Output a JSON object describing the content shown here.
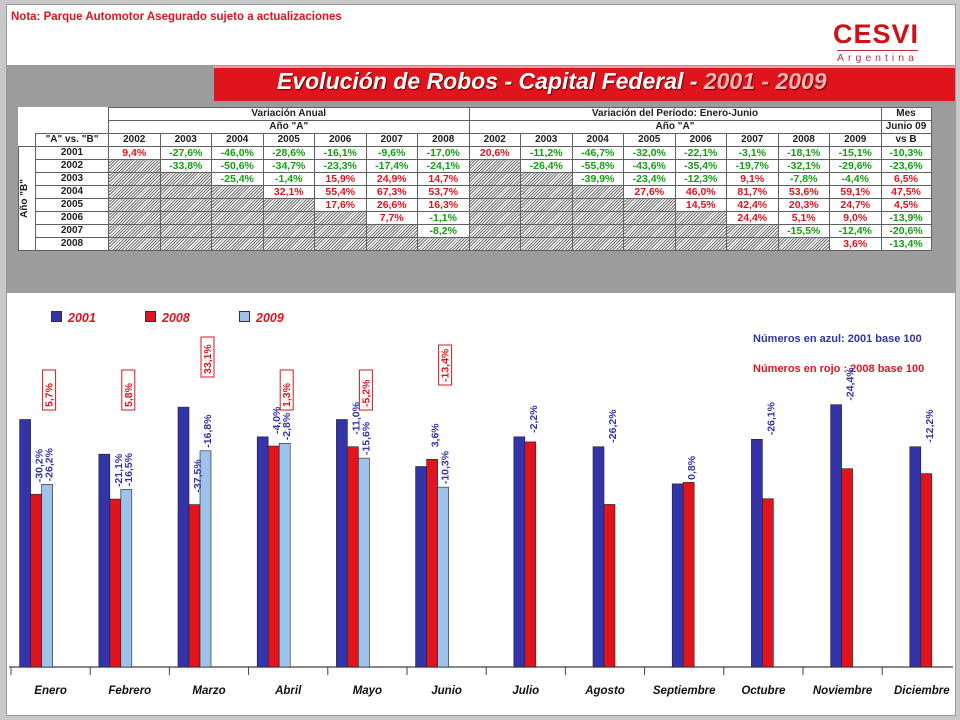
{
  "note": "Nota: Parque Automotor Asegurado sujeto a actualizaciones",
  "logo": {
    "name": "CESVI",
    "sub": "Argentina"
  },
  "title": {
    "main": "Evolución de Robos - Capital Federal - ",
    "years": "2001 - 2009"
  },
  "colors": {
    "blue": "#3333aa",
    "red": "#e0141c",
    "lightblue": "#9dc3ea",
    "green": "#12a012"
  },
  "table": {
    "corner": "\"A\" vs. \"B\"",
    "group1": "Variación Anual",
    "group2": "Variación del Período: Enero-Junio",
    "group3_top": "Mes",
    "group3_mid": "Junio 09",
    "group3_bot": "vs B",
    "sub_a": "Año \"A\"",
    "side_label": "Año \"B\"",
    "anual_cols": [
      "2002",
      "2003",
      "2004",
      "2005",
      "2006",
      "2007",
      "2008"
    ],
    "periodo_cols": [
      "2002",
      "2003",
      "2004",
      "2005",
      "2006",
      "2007",
      "2008",
      "2009"
    ],
    "rows": [
      {
        "year": "2001",
        "anual": [
          "9,4%",
          "-27,6%",
          "-46,0%",
          "-28,6%",
          "-16,1%",
          "-9,6%",
          "-17,0%"
        ],
        "periodo": [
          "20,6%",
          "-11,2%",
          "-46,7%",
          "-32,0%",
          "-22,1%",
          "-3,1%",
          "-18,1%",
          "-15,1%"
        ],
        "mes": "-10,3%"
      },
      {
        "year": "2002",
        "anual": [
          "",
          "-33,8%",
          "-50,6%",
          "-34,7%",
          "-23,3%",
          "-17,4%",
          "-24,1%"
        ],
        "periodo": [
          "",
          "-26,4%",
          "-55,8%",
          "-43,6%",
          "-35,4%",
          "-19,7%",
          "-32,1%",
          "-29,6%"
        ],
        "mes": "-23,6%"
      },
      {
        "year": "2003",
        "anual": [
          "",
          "",
          "-25,4%",
          "-1,4%",
          "15,9%",
          "24,9%",
          "14,7%"
        ],
        "periodo": [
          "",
          "",
          "-39,9%",
          "-23,4%",
          "-12,3%",
          "9,1%",
          "-7,8%",
          "-4,4%"
        ],
        "mes": "6,5%"
      },
      {
        "year": "2004",
        "anual": [
          "",
          "",
          "",
          "32,1%",
          "55,4%",
          "67,3%",
          "53,7%"
        ],
        "periodo": [
          "",
          "",
          "",
          "27,6%",
          "46,0%",
          "81,7%",
          "53,6%",
          "59,1%"
        ],
        "mes": "47,5%"
      },
      {
        "year": "2005",
        "anual": [
          "",
          "",
          "",
          "",
          "17,6%",
          "26,6%",
          "16,3%"
        ],
        "periodo": [
          "",
          "",
          "",
          "",
          "14,5%",
          "42,4%",
          "20,3%",
          "24,7%"
        ],
        "mes": "4,5%"
      },
      {
        "year": "2006",
        "anual": [
          "",
          "",
          "",
          "",
          "",
          "7,7%",
          "-1,1%"
        ],
        "periodo": [
          "",
          "",
          "",
          "",
          "",
          "24,4%",
          "5,1%",
          "9,0%"
        ],
        "mes": "-13,9%"
      },
      {
        "year": "2007",
        "anual": [
          "",
          "",
          "",
          "",
          "",
          "",
          "-8,2%"
        ],
        "periodo": [
          "",
          "",
          "",
          "",
          "",
          "",
          "-15,5%",
          "-12,4%"
        ],
        "mes": "-20,6%"
      },
      {
        "year": "2008",
        "anual": [
          "",
          "",
          "",
          "",
          "",
          "",
          ""
        ],
        "periodo": [
          "",
          "",
          "",
          "",
          "",
          "",
          "",
          "3,6%"
        ],
        "mes": "-13,4%"
      }
    ]
  },
  "chart_data": {
    "type": "bar",
    "categories": [
      "Enero",
      "Febrero",
      "Marzo",
      "Abril",
      "Mayo",
      "Junio",
      "Julio",
      "Agosto",
      "Septiembre",
      "Octubre",
      "Noviembre",
      "Diciembre"
    ],
    "series": [
      {
        "name": "2001",
        "values": [
          100,
          100,
          100,
          100,
          100,
          100,
          100,
          100,
          100,
          100,
          100,
          100
        ]
      },
      {
        "name": "2008",
        "values": [
          69.8,
          78.9,
          62.5,
          96.0,
          89.0,
          103.6,
          97.8,
          73.8,
          100.8,
          73.9,
          75.6,
          87.8
        ]
      },
      {
        "name": "2009",
        "values": [
          73.8,
          83.5,
          83.2,
          97.2,
          84.4,
          89.7,
          null,
          null,
          null,
          null,
          null,
          null
        ]
      }
    ],
    "blue_labels": [
      "-30,2%",
      "-21,1%",
      "-37,5%",
      "-4,0%",
      "-11,0%",
      "3,6%",
      "-2,2%",
      "-26,2%",
      "0,8%",
      "-26,1%",
      "-24,4%",
      "-12,2%"
    ],
    "lightblue_labels": [
      "-26,2%",
      "-16,5%",
      "-16,8%",
      "-2,8%",
      "-15,6%",
      "-10,3%",
      "",
      "",
      "",
      "",
      "",
      ""
    ],
    "red_box_labels": [
      "5,7%",
      "5,8%",
      "33,1%",
      "1,3%",
      "-5,2%",
      "-13,4%",
      "",
      "",
      "",
      "",
      "",
      ""
    ],
    "bar_heights_note_blue": "Números en azul: 2001 base 100",
    "bar_heights_note_red": "Números en rojo : 2008 base 100",
    "blue_bar_heights": [
      100,
      100,
      100,
      100,
      100,
      100,
      100,
      100,
      100,
      100,
      100,
      100
    ],
    "blue_scaled": [
      100,
      86,
      105,
      93,
      100,
      81,
      93,
      89,
      74,
      92,
      106,
      89
    ],
    "ylim": [
      0,
      140
    ]
  }
}
